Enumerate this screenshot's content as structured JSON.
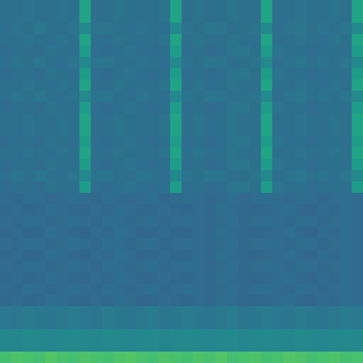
{
  "chart_data": {
    "type": "heatmap",
    "color": "Viridis",
    "color_range": [
      0,
      1
    ],
    "tick_labels": false,
    "cells": [
      [
        0.37,
        0.36,
        0.38,
        0.37,
        0.36,
        0.38,
        0.37,
        0.58,
        0.37,
        0.36,
        0.38,
        0.37,
        0.36,
        0.37,
        0.38,
        0.58,
        0.37,
        0.38,
        0.36,
        0.37,
        0.38,
        0.37,
        0.36,
        0.58,
        0.37,
        0.36,
        0.38,
        0.37,
        0.36,
        0.38,
        0.37,
        0.58
      ],
      [
        0.37,
        0.36,
        0.38,
        0.37,
        0.36,
        0.38,
        0.37,
        0.58,
        0.37,
        0.36,
        0.38,
        0.37,
        0.36,
        0.37,
        0.38,
        0.58,
        0.37,
        0.38,
        0.36,
        0.37,
        0.38,
        0.37,
        0.36,
        0.58,
        0.37,
        0.36,
        0.38,
        0.37,
        0.36,
        0.38,
        0.37,
        0.58
      ],
      [
        0.36,
        0.38,
        0.37,
        0.39,
        0.37,
        0.36,
        0.38,
        0.47,
        0.38,
        0.39,
        0.37,
        0.36,
        0.38,
        0.37,
        0.36,
        0.47,
        0.38,
        0.37,
        0.39,
        0.38,
        0.36,
        0.37,
        0.38,
        0.47,
        0.36,
        0.38,
        0.39,
        0.37,
        0.38,
        0.36,
        0.39,
        0.47
      ],
      [
        0.37,
        0.36,
        0.38,
        0.37,
        0.36,
        0.38,
        0.37,
        0.58,
        0.37,
        0.36,
        0.38,
        0.37,
        0.36,
        0.37,
        0.38,
        0.58,
        0.37,
        0.38,
        0.36,
        0.37,
        0.38,
        0.37,
        0.36,
        0.58,
        0.37,
        0.36,
        0.38,
        0.37,
        0.36,
        0.38,
        0.37,
        0.58
      ],
      [
        0.35,
        0.37,
        0.36,
        0.35,
        0.38,
        0.37,
        0.36,
        0.55,
        0.36,
        0.35,
        0.37,
        0.38,
        0.36,
        0.35,
        0.37,
        0.55,
        0.36,
        0.37,
        0.35,
        0.36,
        0.38,
        0.39,
        0.37,
        0.55,
        0.38,
        0.36,
        0.37,
        0.35,
        0.36,
        0.37,
        0.36,
        0.55
      ],
      [
        0.36,
        0.38,
        0.37,
        0.39,
        0.37,
        0.36,
        0.38,
        0.47,
        0.38,
        0.39,
        0.37,
        0.36,
        0.38,
        0.37,
        0.36,
        0.47,
        0.38,
        0.37,
        0.39,
        0.38,
        0.36,
        0.37,
        0.38,
        0.47,
        0.36,
        0.38,
        0.39,
        0.37,
        0.38,
        0.36,
        0.39,
        0.47
      ],
      [
        0.35,
        0.37,
        0.36,
        0.35,
        0.38,
        0.37,
        0.36,
        0.55,
        0.36,
        0.35,
        0.37,
        0.38,
        0.36,
        0.35,
        0.37,
        0.55,
        0.36,
        0.37,
        0.35,
        0.36,
        0.38,
        0.39,
        0.37,
        0.55,
        0.38,
        0.36,
        0.37,
        0.35,
        0.36,
        0.37,
        0.36,
        0.55
      ],
      [
        0.37,
        0.36,
        0.38,
        0.37,
        0.36,
        0.38,
        0.37,
        0.58,
        0.37,
        0.36,
        0.38,
        0.37,
        0.36,
        0.37,
        0.38,
        0.58,
        0.37,
        0.38,
        0.36,
        0.37,
        0.38,
        0.37,
        0.36,
        0.58,
        0.37,
        0.36,
        0.38,
        0.37,
        0.36,
        0.38,
        0.37,
        0.58
      ],
      [
        0.36,
        0.38,
        0.37,
        0.39,
        0.37,
        0.36,
        0.38,
        0.47,
        0.38,
        0.39,
        0.37,
        0.36,
        0.38,
        0.37,
        0.36,
        0.47,
        0.38,
        0.37,
        0.39,
        0.38,
        0.36,
        0.37,
        0.38,
        0.47,
        0.36,
        0.38,
        0.39,
        0.37,
        0.38,
        0.36,
        0.39,
        0.47
      ],
      [
        0.35,
        0.37,
        0.36,
        0.35,
        0.38,
        0.37,
        0.36,
        0.55,
        0.36,
        0.35,
        0.37,
        0.38,
        0.36,
        0.35,
        0.37,
        0.55,
        0.36,
        0.37,
        0.35,
        0.36,
        0.38,
        0.39,
        0.37,
        0.55,
        0.38,
        0.36,
        0.37,
        0.35,
        0.36,
        0.37,
        0.36,
        0.55
      ],
      [
        0.37,
        0.36,
        0.38,
        0.37,
        0.36,
        0.38,
        0.37,
        0.58,
        0.37,
        0.36,
        0.38,
        0.37,
        0.36,
        0.37,
        0.38,
        0.58,
        0.37,
        0.38,
        0.36,
        0.37,
        0.38,
        0.37,
        0.36,
        0.58,
        0.37,
        0.36,
        0.38,
        0.37,
        0.36,
        0.38,
        0.37,
        0.58
      ],
      [
        0.37,
        0.36,
        0.38,
        0.37,
        0.36,
        0.38,
        0.37,
        0.58,
        0.37,
        0.36,
        0.38,
        0.37,
        0.36,
        0.37,
        0.38,
        0.58,
        0.37,
        0.38,
        0.36,
        0.37,
        0.38,
        0.37,
        0.36,
        0.58,
        0.37,
        0.36,
        0.38,
        0.37,
        0.36,
        0.38,
        0.37,
        0.58
      ],
      [
        0.35,
        0.37,
        0.36,
        0.35,
        0.38,
        0.37,
        0.36,
        0.55,
        0.36,
        0.35,
        0.37,
        0.38,
        0.36,
        0.35,
        0.37,
        0.55,
        0.36,
        0.37,
        0.35,
        0.36,
        0.38,
        0.39,
        0.37,
        0.55,
        0.38,
        0.36,
        0.37,
        0.35,
        0.36,
        0.37,
        0.36,
        0.55
      ],
      [
        0.37,
        0.36,
        0.38,
        0.37,
        0.36,
        0.38,
        0.37,
        0.58,
        0.37,
        0.36,
        0.38,
        0.37,
        0.36,
        0.37,
        0.38,
        0.58,
        0.37,
        0.38,
        0.36,
        0.37,
        0.38,
        0.37,
        0.36,
        0.58,
        0.37,
        0.36,
        0.38,
        0.37,
        0.36,
        0.38,
        0.37,
        0.58
      ],
      [
        0.35,
        0.37,
        0.36,
        0.35,
        0.38,
        0.37,
        0.36,
        0.55,
        0.36,
        0.35,
        0.37,
        0.38,
        0.36,
        0.35,
        0.37,
        0.55,
        0.36,
        0.37,
        0.35,
        0.36,
        0.38,
        0.39,
        0.37,
        0.55,
        0.38,
        0.36,
        0.37,
        0.35,
        0.36,
        0.37,
        0.36,
        0.55
      ],
      [
        0.36,
        0.38,
        0.37,
        0.39,
        0.37,
        0.36,
        0.38,
        0.47,
        0.38,
        0.39,
        0.37,
        0.36,
        0.38,
        0.37,
        0.36,
        0.47,
        0.38,
        0.37,
        0.39,
        0.38,
        0.36,
        0.37,
        0.38,
        0.47,
        0.36,
        0.38,
        0.39,
        0.37,
        0.38,
        0.36,
        0.39,
        0.47
      ],
      [
        0.35,
        0.37,
        0.36,
        0.35,
        0.38,
        0.37,
        0.36,
        0.55,
        0.36,
        0.35,
        0.37,
        0.38,
        0.36,
        0.35,
        0.37,
        0.55,
        0.36,
        0.37,
        0.35,
        0.36,
        0.38,
        0.39,
        0.37,
        0.55,
        0.38,
        0.36,
        0.37,
        0.35,
        0.36,
        0.37,
        0.36,
        0.55
      ],
      [
        0.35,
        0.34,
        0.36,
        0.35,
        0.34,
        0.35,
        0.36,
        0.35,
        0.34,
        0.36,
        0.35,
        0.34,
        0.35,
        0.36,
        0.34,
        0.35,
        0.36,
        0.35,
        0.34,
        0.35,
        0.36,
        0.34,
        0.35,
        0.36,
        0.35,
        0.34,
        0.36,
        0.35,
        0.34,
        0.35,
        0.36,
        0.35
      ],
      [
        0.34,
        0.35,
        0.33,
        0.34,
        0.36,
        0.35,
        0.34,
        0.33,
        0.35,
        0.34,
        0.36,
        0.35,
        0.33,
        0.34,
        0.35,
        0.34,
        0.33,
        0.35,
        0.34,
        0.36,
        0.35,
        0.34,
        0.33,
        0.34,
        0.35,
        0.36,
        0.34,
        0.33,
        0.35,
        0.34,
        0.36,
        0.35
      ],
      [
        0.35,
        0.34,
        0.36,
        0.35,
        0.34,
        0.35,
        0.36,
        0.35,
        0.34,
        0.36,
        0.35,
        0.34,
        0.35,
        0.36,
        0.34,
        0.35,
        0.36,
        0.35,
        0.34,
        0.35,
        0.36,
        0.34,
        0.35,
        0.36,
        0.35,
        0.34,
        0.36,
        0.35,
        0.34,
        0.35,
        0.36,
        0.35
      ],
      [
        0.34,
        0.35,
        0.33,
        0.34,
        0.36,
        0.35,
        0.34,
        0.33,
        0.35,
        0.34,
        0.36,
        0.35,
        0.33,
        0.34,
        0.35,
        0.34,
        0.33,
        0.35,
        0.34,
        0.36,
        0.35,
        0.34,
        0.33,
        0.34,
        0.35,
        0.36,
        0.34,
        0.33,
        0.35,
        0.34,
        0.36,
        0.35
      ],
      [
        0.35,
        0.34,
        0.36,
        0.35,
        0.34,
        0.35,
        0.36,
        0.35,
        0.34,
        0.36,
        0.35,
        0.34,
        0.35,
        0.36,
        0.34,
        0.35,
        0.36,
        0.35,
        0.34,
        0.35,
        0.36,
        0.34,
        0.35,
        0.36,
        0.35,
        0.34,
        0.36,
        0.35,
        0.34,
        0.35,
        0.36,
        0.35
      ],
      [
        0.34,
        0.35,
        0.33,
        0.34,
        0.36,
        0.35,
        0.34,
        0.33,
        0.35,
        0.34,
        0.36,
        0.35,
        0.33,
        0.34,
        0.35,
        0.34,
        0.33,
        0.35,
        0.34,
        0.36,
        0.35,
        0.34,
        0.33,
        0.34,
        0.35,
        0.36,
        0.34,
        0.33,
        0.35,
        0.34,
        0.36,
        0.35
      ],
      [
        0.35,
        0.34,
        0.36,
        0.35,
        0.34,
        0.35,
        0.36,
        0.35,
        0.34,
        0.36,
        0.35,
        0.34,
        0.35,
        0.36,
        0.34,
        0.35,
        0.36,
        0.35,
        0.34,
        0.35,
        0.36,
        0.34,
        0.35,
        0.36,
        0.35,
        0.34,
        0.36,
        0.35,
        0.34,
        0.35,
        0.36,
        0.35
      ],
      [
        0.34,
        0.35,
        0.33,
        0.34,
        0.36,
        0.35,
        0.34,
        0.33,
        0.35,
        0.34,
        0.36,
        0.35,
        0.33,
        0.34,
        0.35,
        0.34,
        0.33,
        0.35,
        0.34,
        0.36,
        0.35,
        0.34,
        0.33,
        0.34,
        0.35,
        0.36,
        0.34,
        0.33,
        0.35,
        0.34,
        0.36,
        0.35
      ],
      [
        0.35,
        0.34,
        0.36,
        0.35,
        0.34,
        0.35,
        0.36,
        0.35,
        0.34,
        0.36,
        0.35,
        0.34,
        0.35,
        0.36,
        0.34,
        0.35,
        0.36,
        0.35,
        0.34,
        0.35,
        0.36,
        0.34,
        0.35,
        0.36,
        0.35,
        0.34,
        0.36,
        0.35,
        0.34,
        0.35,
        0.36,
        0.35
      ],
      [
        0.34,
        0.35,
        0.33,
        0.34,
        0.36,
        0.35,
        0.34,
        0.33,
        0.35,
        0.34,
        0.36,
        0.35,
        0.33,
        0.34,
        0.35,
        0.34,
        0.33,
        0.35,
        0.34,
        0.36,
        0.35,
        0.34,
        0.33,
        0.34,
        0.35,
        0.36,
        0.34,
        0.33,
        0.35,
        0.34,
        0.36,
        0.35
      ],
      [
        0.4,
        0.39,
        0.41,
        0.4,
        0.39,
        0.4,
        0.41,
        0.4,
        0.39,
        0.41,
        0.4,
        0.39,
        0.4,
        0.41,
        0.39,
        0.4,
        0.41,
        0.4,
        0.39,
        0.4,
        0.41,
        0.39,
        0.4,
        0.41,
        0.4,
        0.39,
        0.41,
        0.4,
        0.39,
        0.4,
        0.41,
        0.4
      ],
      [
        0.4,
        0.39,
        0.41,
        0.4,
        0.39,
        0.4,
        0.41,
        0.4,
        0.39,
        0.41,
        0.4,
        0.39,
        0.4,
        0.41,
        0.39,
        0.4,
        0.41,
        0.4,
        0.39,
        0.4,
        0.41,
        0.39,
        0.4,
        0.41,
        0.4,
        0.39,
        0.41,
        0.4,
        0.39,
        0.4,
        0.41,
        0.4
      ],
      [
        0.46,
        0.45,
        0.47,
        0.46,
        0.45,
        0.46,
        0.47,
        0.46,
        0.45,
        0.47,
        0.46,
        0.45,
        0.46,
        0.47,
        0.45,
        0.46,
        0.47,
        0.46,
        0.45,
        0.46,
        0.47,
        0.45,
        0.46,
        0.47,
        0.46,
        0.45,
        0.47,
        0.46,
        0.45,
        0.46,
        0.47,
        0.46
      ],
      [
        0.46,
        0.45,
        0.47,
        0.46,
        0.45,
        0.46,
        0.47,
        0.46,
        0.45,
        0.47,
        0.46,
        0.45,
        0.46,
        0.47,
        0.45,
        0.46,
        0.47,
        0.46,
        0.45,
        0.46,
        0.47,
        0.45,
        0.46,
        0.47,
        0.46,
        0.45,
        0.47,
        0.46,
        0.45,
        0.46,
        0.47,
        0.46
      ],
      [
        0.7,
        0.72,
        0.71,
        0.7,
        0.73,
        0.71,
        0.7,
        0.72,
        0.71,
        0.7,
        0.72,
        0.73,
        0.71,
        0.7,
        0.72,
        0.71,
        0.7,
        0.72,
        0.71,
        0.73,
        0.7,
        0.71,
        0.72,
        0.7,
        0.71,
        0.73,
        0.72,
        0.7,
        0.71,
        0.72,
        0.7,
        0.71
      ]
    ]
  }
}
